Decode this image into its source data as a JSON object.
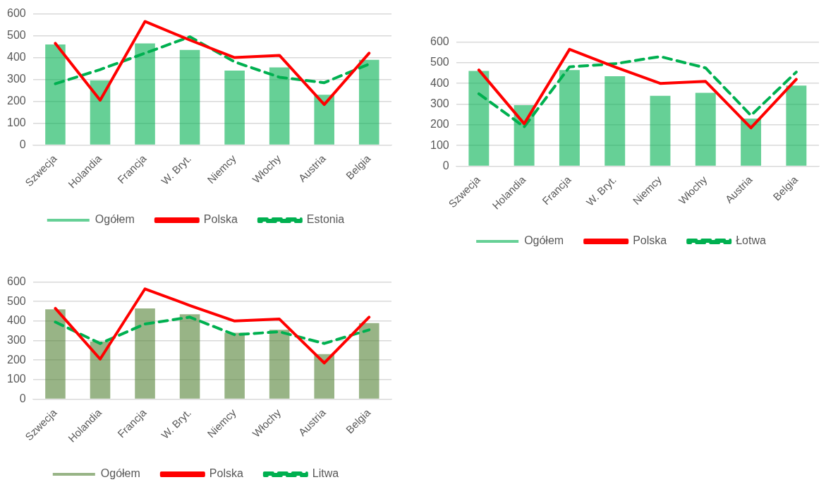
{
  "chart_data": [
    {
      "type": "bar",
      "categories": [
        "Szwecja",
        "Holandia",
        "Francja",
        "W. Bryt.",
        "Niemcy",
        "Włochy",
        "Austria",
        "Belgia"
      ],
      "ylim": [
        0,
        600
      ],
      "yticks": [
        0,
        100,
        200,
        300,
        400,
        500,
        600
      ],
      "grid": "y",
      "legend": "bottom",
      "series": [
        {
          "name": "Ogółem",
          "color": "#00b050",
          "values": [
            460,
            295,
            465,
            435,
            340,
            355,
            230,
            390
          ]
        },
        {
          "name": "Polska",
          "type": "line",
          "color": "#ff0000",
          "line_style": "solid",
          "values": [
            465,
            205,
            565,
            480,
            400,
            410,
            185,
            420
          ]
        },
        {
          "name": "Estonia",
          "type": "line",
          "color": "#00b050",
          "line_style": "dashed",
          "values": [
            280,
            345,
            420,
            495,
            380,
            310,
            285,
            370
          ]
        }
      ]
    },
    {
      "type": "bar",
      "categories": [
        "Szwecja",
        "Holandia",
        "Francja",
        "W. Bryt.",
        "Niemcy",
        "Włochy",
        "Austria",
        "Belgia"
      ],
      "ylim": [
        0,
        600
      ],
      "yticks": [
        0,
        100,
        200,
        300,
        400,
        500,
        600
      ],
      "grid": "y",
      "legend": "bottom",
      "series": [
        {
          "name": "Ogółem",
          "color": "#00b050",
          "values": [
            460,
            295,
            465,
            435,
            340,
            355,
            230,
            390
          ]
        },
        {
          "name": "Polska",
          "type": "line",
          "color": "#ff0000",
          "line_style": "solid",
          "values": [
            465,
            205,
            565,
            480,
            400,
            410,
            185,
            420
          ]
        },
        {
          "name": "Łotwa",
          "type": "line",
          "color": "#00b050",
          "line_style": "dashed",
          "values": [
            350,
            190,
            480,
            495,
            530,
            475,
            245,
            455
          ]
        }
      ]
    },
    {
      "type": "bar",
      "categories": [
        "Szwecja",
        "Holandia",
        "Francja",
        "W. Bryt.",
        "Niemcy",
        "Włochy",
        "Austria",
        "Belgia"
      ],
      "ylim": [
        0,
        600
      ],
      "yticks": [
        0,
        100,
        200,
        300,
        400,
        500,
        600
      ],
      "grid": "y",
      "legend": "bottom",
      "series": [
        {
          "name": "Ogółem",
          "color": "#548235",
          "values": [
            460,
            295,
            465,
            435,
            340,
            355,
            230,
            390
          ]
        },
        {
          "name": "Polska",
          "type": "line",
          "color": "#ff0000",
          "line_style": "solid",
          "values": [
            465,
            205,
            565,
            480,
            400,
            410,
            185,
            420
          ]
        },
        {
          "name": "Litwa",
          "type": "line",
          "color": "#00b050",
          "line_style": "dashed",
          "values": [
            395,
            285,
            385,
            420,
            330,
            345,
            285,
            355
          ]
        }
      ]
    }
  ]
}
